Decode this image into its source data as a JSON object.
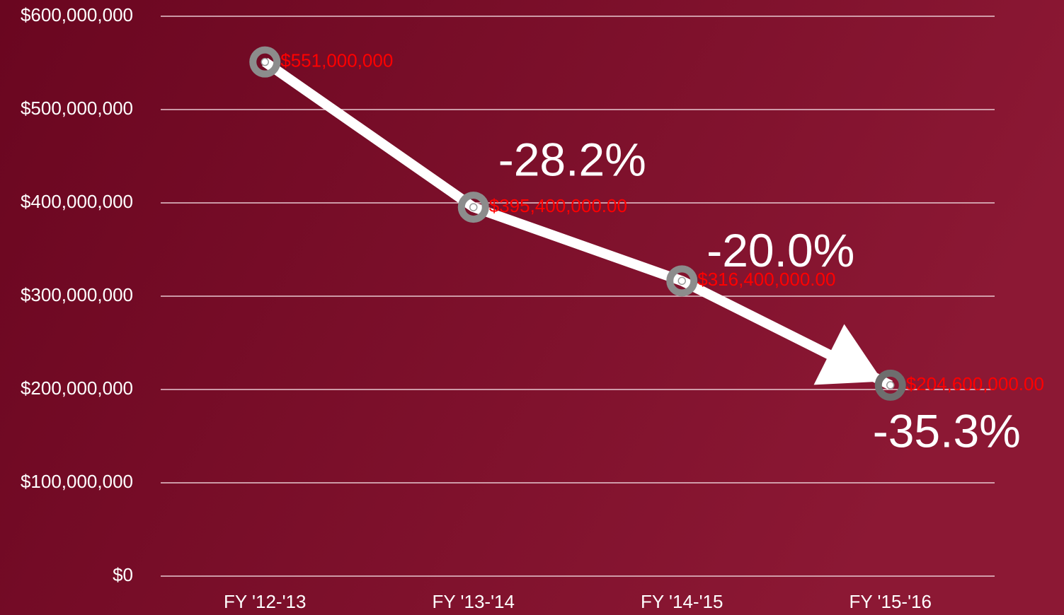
{
  "chart_data": {
    "type": "line",
    "categories": [
      "FY '12-'13",
      "FY '13-'14",
      "FY '14-'15",
      "FY '15-'16"
    ],
    "series": [
      {
        "color": "#ffffff",
        "values": [
          551000000,
          395400000,
          316400000,
          204600000
        ],
        "value_labels": [
          "$551,000,000",
          "$395,400,000.00",
          "$316,400,000.00",
          "$204,600,000.00"
        ]
      }
    ],
    "ylim": [
      0,
      600000000
    ],
    "yticks": [
      {
        "value": 0,
        "label": "$0"
      },
      {
        "value": 100000000,
        "label": "$100,000,000"
      },
      {
        "value": 200000000,
        "label": "$200,000,000"
      },
      {
        "value": 300000000,
        "label": "$300,000,000"
      },
      {
        "value": 400000000,
        "label": "$400,000,000"
      },
      {
        "value": 500000000,
        "label": "$500,000,000"
      },
      {
        "value": 600000000,
        "label": "$600,000,000"
      }
    ],
    "grid": true,
    "annotations": [
      "-28.2%",
      "-20.0%",
      "-35.3%"
    ]
  }
}
